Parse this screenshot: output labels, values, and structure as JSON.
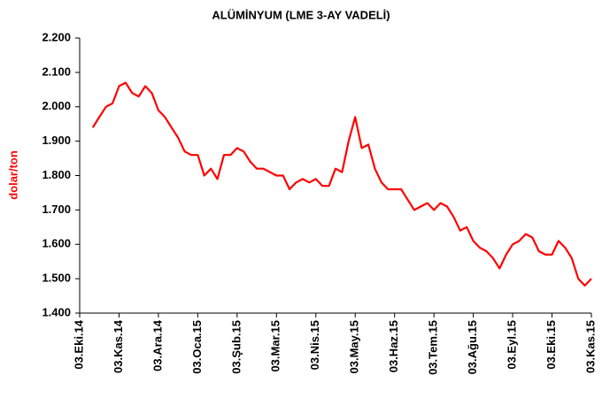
{
  "chart_data": {
    "type": "line",
    "title": "ALÜMİNYUM (LME 3-AY VADELİ)",
    "y_label": "dolar/ton",
    "categories": [
      "03.Eki.14",
      null,
      null,
      null,
      null,
      null,
      "03.Kas.14",
      null,
      null,
      null,
      null,
      null,
      "03.Ara.14",
      null,
      null,
      null,
      null,
      null,
      "03.Oca.15",
      null,
      null,
      null,
      null,
      null,
      "03.Şub.15",
      null,
      null,
      null,
      null,
      null,
      "03.Mar.15",
      null,
      null,
      null,
      null,
      null,
      "03.Nis.15",
      null,
      null,
      null,
      null,
      null,
      "03.May.15",
      null,
      null,
      null,
      null,
      null,
      "03.Haz.15",
      null,
      null,
      null,
      null,
      null,
      "03.Tem.15",
      null,
      null,
      null,
      null,
      null,
      "03.Ağu.15",
      null,
      null,
      null,
      null,
      null,
      "03.Eyl.15",
      null,
      null,
      null,
      null,
      null,
      "03.Eki.15",
      null,
      null,
      null,
      null,
      null,
      "03.Kas.15"
    ],
    "series": [
      {
        "name": "Alüminyum",
        "color": "#ff0000",
        "values": [
          null,
          null,
          1940,
          1970,
          2000,
          2010,
          2060,
          2070,
          2040,
          2030,
          2060,
          2040,
          1990,
          1970,
          1940,
          1910,
          1870,
          1860,
          1860,
          1800,
          1820,
          1790,
          1860,
          1860,
          1880,
          1870,
          1840,
          1820,
          1820,
          1810,
          1800,
          1800,
          1760,
          1780,
          1790,
          1780,
          1790,
          1770,
          1770,
          1820,
          1810,
          1900,
          1970,
          1880,
          1890,
          1820,
          1780,
          1760,
          1760,
          1760,
          1730,
          1700,
          1710,
          1720,
          1700,
          1720,
          1710,
          1680,
          1640,
          1650,
          1610,
          1590,
          1580,
          1560,
          1530,
          1570,
          1600,
          1610,
          1630,
          1620,
          1580,
          1570,
          1570,
          1610,
          1590,
          1560,
          1500,
          1480,
          1500
        ]
      }
    ],
    "ylim": [
      1400,
      2200
    ],
    "yticks": [
      {
        "value": 1400,
        "label": "1.400"
      },
      {
        "value": 1500,
        "label": "1.500"
      },
      {
        "value": 1600,
        "label": "1.600"
      },
      {
        "value": 1700,
        "label": "1.700"
      },
      {
        "value": 1800,
        "label": "1.800"
      },
      {
        "value": 1900,
        "label": "1.900"
      },
      {
        "value": 2000,
        "label": "2.000"
      },
      {
        "value": 2100,
        "label": "2.100"
      },
      {
        "value": 2200,
        "label": "2.200"
      }
    ],
    "grid": false
  }
}
